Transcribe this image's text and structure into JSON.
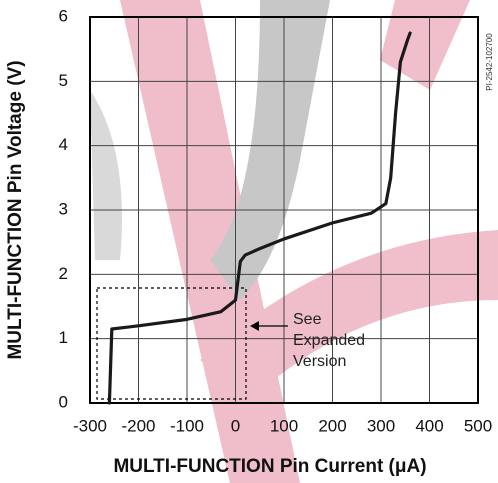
{
  "chart_data": {
    "type": "line",
    "x_label": "MULTI-FUNCTION Pin Current (μA)",
    "y_label": "MULTI-FUNCTION Pin Voltage (V)",
    "annotation": [
      "See",
      "Expanded",
      "Version"
    ],
    "figure_id": "PI-2542-102700",
    "xlim": [
      -300,
      500
    ],
    "ylim": [
      0,
      6
    ],
    "xticks": [
      -300,
      -200,
      -100,
      0,
      100,
      200,
      300,
      400,
      500
    ],
    "yticks": [
      0,
      1,
      2,
      3,
      4,
      5,
      6
    ],
    "grid": true,
    "series": [
      {
        "color": "#1a1a1a",
        "x": [
          -260,
          -255,
          -200,
          -100,
          -30,
          0,
          5,
          10,
          20,
          50,
          100,
          200,
          280,
          310,
          320,
          330,
          340,
          355,
          360
        ],
        "values": [
          0,
          1.15,
          1.2,
          1.3,
          1.42,
          1.6,
          1.9,
          2.2,
          2.3,
          2.4,
          2.55,
          2.8,
          2.95,
          3.1,
          3.5,
          4.5,
          5.3,
          5.65,
          5.75
        ]
      }
    ]
  }
}
